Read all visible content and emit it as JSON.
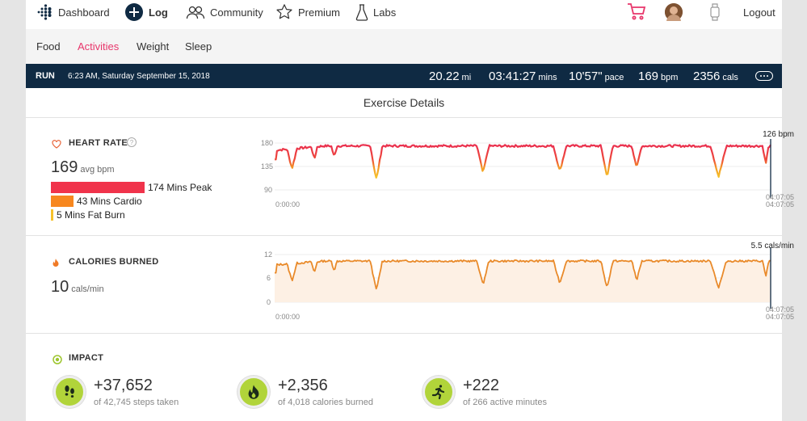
{
  "nav": {
    "dashboard": "Dashboard",
    "log": "Log",
    "community": "Community",
    "premium": "Premium",
    "labs": "Labs",
    "logout": "Logout"
  },
  "subnav": {
    "food": "Food",
    "activities": "Activities",
    "weight": "Weight",
    "sleep": "Sleep"
  },
  "runbar": {
    "type": "RUN",
    "date": "6:23 AM, Saturday September 15, 2018",
    "distance": {
      "value": "20.22",
      "unit": "mi"
    },
    "duration": {
      "value": "03:41:27",
      "unit": "mins"
    },
    "pace": {
      "value": "10'57\"",
      "unit": "pace"
    },
    "heart": {
      "value": "169",
      "unit": "bpm"
    },
    "calories": {
      "value": "2356",
      "unit": "cals"
    }
  },
  "details_title": "Exercise Details",
  "heart_rate": {
    "title": "HEART RATE",
    "avg_value": "169",
    "avg_unit": "avg bpm",
    "zones": [
      {
        "label": "174 Mins Peak",
        "minutes": 174,
        "color": "#f0334b"
      },
      {
        "label": "43 Mins Cardio",
        "minutes": 43,
        "color": "#f7871f"
      },
      {
        "label": "5 Mins Fat Burn",
        "minutes": 5,
        "color": "#f6c12a"
      }
    ],
    "current_label": "126 bpm",
    "y_ticks": [
      "180",
      "135",
      "90"
    ],
    "x_start": "0:00:00",
    "x_end_1": "04:07:05",
    "x_end_2": "04:07:05"
  },
  "calories": {
    "title": "CALORIES BURNED",
    "value": "10",
    "unit": "cals/min",
    "current_label": "5.5 cals/min",
    "y_ticks": [
      "12",
      "6",
      "0"
    ],
    "x_start": "0:00:00",
    "x_end_1": "04:07:05",
    "x_end_2": "04:07:05"
  },
  "impact": {
    "title": "IMPACT",
    "items": [
      {
        "value": "+37,652",
        "sub": "of 42,745 steps taken",
        "icon": "footsteps-icon"
      },
      {
        "value": "+2,356",
        "sub": "of 4,018 calories burned",
        "icon": "flame-icon"
      },
      {
        "value": "+222",
        "sub": "of 266 active minutes",
        "icon": "runner-icon"
      }
    ]
  },
  "colors": {
    "accent": "#e8366b",
    "runbar": "#0f2a43",
    "hr_line": "#e8334a",
    "cal_line": "#e98a2a",
    "impact_green": "#b1d43a"
  }
}
